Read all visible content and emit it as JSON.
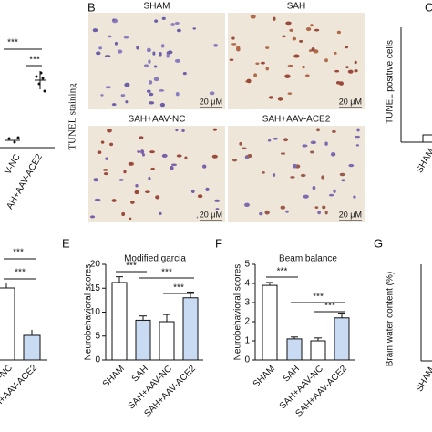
{
  "chart_data": [
    {
      "type": "bar",
      "title": "Modified garcia",
      "panel": "E",
      "y_label": "Neurobehavioral scores",
      "categories": [
        "SHAM",
        "SAH",
        "SAH+AAV-NC",
        "SAH+AAV-ACE2"
      ],
      "values": [
        16.2,
        8.3,
        8.0,
        13.0
      ],
      "errors": [
        1.2,
        0.9,
        1.5,
        1.2
      ],
      "colors": [
        "#ffffff",
        "#c9dbf2",
        "#ffffff",
        "#c9dbf2"
      ],
      "ylim": [
        0,
        20
      ],
      "yticks": [
        0,
        5,
        10,
        15,
        20
      ],
      "annotations": [
        "***",
        "***",
        "***"
      ]
    },
    {
      "type": "bar",
      "title": "Beam balance",
      "panel": "F",
      "y_label": "Neurobehavioral scores",
      "categories": [
        "SHAM",
        "SAH",
        "SAH+AAV-NC",
        "SAH+AAV-ACE2"
      ],
      "values": [
        3.9,
        1.1,
        1.0,
        2.2
      ],
      "errors": [
        0.15,
        0.1,
        0.15,
        0.25
      ],
      "colors": [
        "#ffffff",
        "#c9dbf2",
        "#ffffff",
        "#c9dbf2"
      ],
      "ylim": [
        0,
        5
      ],
      "yticks": [
        0,
        1,
        2,
        3,
        4,
        5
      ],
      "annotations": [
        "***",
        "***",
        "***"
      ]
    }
  ],
  "panel_b": {
    "label": "B",
    "y_label": "TUNEL staining",
    "images": [
      {
        "title": "SHAM",
        "scale": "20 μM"
      },
      {
        "title": "SAH",
        "scale": "20 μM"
      },
      {
        "title": "SAH+AAV-NC",
        "scale": "20 μM"
      },
      {
        "title": "SAH+AAV-ACE2",
        "scale": "20 μM"
      }
    ]
  },
  "partial_panels": {
    "a": {
      "annotations": [
        "***",
        "***"
      ],
      "categories": [
        "V-NC",
        "AH+AAV-ACE2"
      ]
    },
    "c": {
      "label": "C",
      "y_label": "TUNEL positive cells",
      "category": "SHAM"
    },
    "d": {
      "annotations": [
        "***",
        "***"
      ],
      "categories": [
        "-NC",
        "SAH+AAV-ACE2"
      ]
    },
    "g": {
      "label": "G",
      "y_label": "Brain water content (%)",
      "category": "SHAM"
    }
  }
}
